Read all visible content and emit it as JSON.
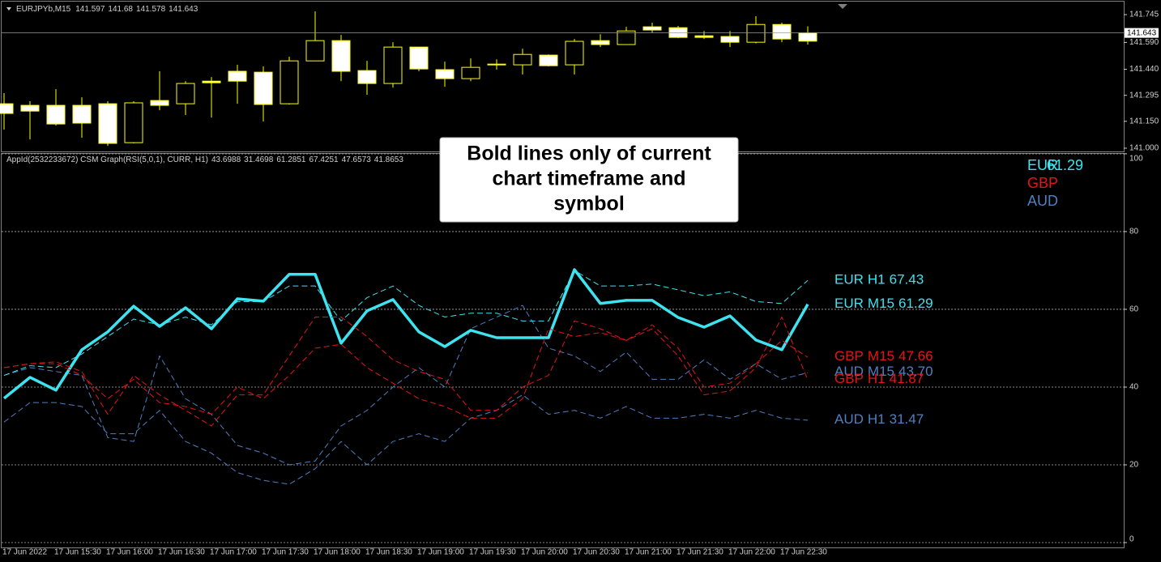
{
  "chart_data": [
    {
      "type": "candlestick",
      "title": "EURJPYb,M15",
      "open": [
        141.194,
        141.207,
        141.135,
        141.14,
        141.027,
        141.253,
        141.239,
        141.361,
        141.365,
        141.374,
        141.244,
        141.487,
        141.6,
        141.429,
        141.361,
        141.564,
        141.442,
        141.388,
        141.451,
        141.465,
        141.523,
        141.46,
        141.596,
        141.578,
        141.654,
        141.659,
        141.618,
        141.618,
        141.591,
        141.69,
        141.609,
        141.597
      ],
      "high": [
        141.307,
        141.262,
        141.329,
        141.284,
        141.262,
        141.262,
        141.429,
        141.374,
        141.397,
        141.465,
        141.456,
        141.51,
        141.763,
        141.632,
        141.487,
        141.591,
        141.564,
        141.483,
        141.501,
        141.496,
        141.555,
        141.523,
        141.609,
        141.636,
        141.677,
        141.7,
        141.682,
        141.654,
        141.654,
        141.736,
        141.7,
        141.68
      ],
      "low": [
        141.104,
        141.049,
        141.126,
        141.058,
        141.013,
        141.027,
        141.212,
        141.185,
        141.171,
        141.248,
        141.149,
        141.244,
        141.487,
        141.374,
        141.298,
        141.338,
        141.429,
        141.343,
        141.374,
        141.438,
        141.411,
        141.456,
        141.411,
        141.564,
        141.578,
        141.645,
        141.614,
        141.609,
        141.564,
        141.585,
        141.591,
        141.578
      ],
      "close": [
        141.248,
        141.239,
        141.239,
        141.239,
        141.248,
        141.031,
        141.266,
        141.248,
        141.374,
        141.429,
        141.424,
        141.248,
        141.487,
        141.6,
        141.433,
        141.361,
        141.564,
        141.438,
        141.388,
        141.469,
        141.465,
        141.519,
        141.465,
        141.6,
        141.578,
        141.677,
        141.672,
        141.627,
        141.623,
        141.591,
        141.69,
        141.643
      ],
      "up_color": "#ffffff",
      "down_color": "#000000",
      "outline_color": "#ffff00",
      "ylim": [
        140.982,
        141.813
      ],
      "yticks": [
        {
          "value": 141.0,
          "label": "141.000"
        },
        {
          "value": 141.15,
          "label": "141.150"
        },
        141.295,
        {
          "value": 141.44,
          "label": "141.440"
        },
        {
          "value": 141.59,
          "label": "141.590"
        },
        141.745
      ]
    },
    {
      "type": "line",
      "title": "AppId(2532233672) CSM Graph(RSI(5,0,1), CURR, H1)",
      "annotation": [
        "Bold lines only of current",
        "chart timeframe and",
        "symbol"
      ],
      "categories": [
        "17 Jun 2022",
        null,
        "17 Jun 15:30",
        null,
        "17 Jun 16:00",
        null,
        "17 Jun 16:30",
        null,
        "17 Jun 17:00",
        null,
        "17 Jun 17:30",
        null,
        "17 Jun 18:00",
        null,
        "17 Jun 18:30",
        null,
        "17 Jun 19:00",
        null,
        "17 Jun 19:30",
        null,
        "17 Jun 20:00",
        null,
        "17 Jun 20:30",
        null,
        "17 Jun 21:00",
        null,
        "17 Jun 21:30",
        null,
        "17 Jun 22:00",
        null,
        "17 Jun 22:30",
        null
      ],
      "currencies": [
        {
          "name": "EUR",
          "color": "#3ee3f0"
        },
        {
          "name": "GBP",
          "color": "#e81414"
        },
        {
          "name": "AUD",
          "color": "#4f7fc0"
        }
      ],
      "series": [
        {
          "currency": "AUD",
          "timeframe": "M15",
          "bold": false,
          "color": "#4f7fc0",
          "values": [
            43,
            45,
            44,
            43,
            27,
            26,
            48,
            37,
            33,
            25,
            23,
            20,
            21,
            30,
            34,
            40,
            45,
            40,
            55,
            58,
            61,
            50,
            48,
            44,
            49,
            42,
            42,
            47,
            42,
            46,
            42,
            43.6988
          ],
          "value_labels": [
            null,
            null,
            null,
            null,
            null,
            null,
            null,
            null,
            null,
            null,
            null,
            null,
            null,
            null,
            null,
            null,
            null,
            null,
            null,
            null,
            null,
            null,
            null,
            null,
            null,
            null,
            null,
            null,
            null,
            null,
            null,
            "43.70"
          ]
        },
        {
          "currency": "AUD",
          "timeframe": "H1",
          "bold": false,
          "color": "#4f7fc0",
          "values": [
            31,
            36,
            36,
            35,
            28,
            28,
            34,
            26,
            23,
            18,
            16,
            15,
            19,
            26,
            20,
            26,
            28,
            26,
            32,
            34,
            38,
            33,
            34,
            32,
            35,
            32,
            32,
            33,
            32,
            34,
            32,
            31.4698
          ],
          "value_labels": [
            null,
            null,
            null,
            null,
            null,
            null,
            null,
            null,
            null,
            null,
            null,
            null,
            null,
            null,
            null,
            null,
            null,
            null,
            null,
            null,
            null,
            null,
            null,
            null,
            null,
            null,
            null,
            null,
            null,
            null,
            null,
            "31.47"
          ]
        },
        {
          "currency": "EUR",
          "timeframe": "M15",
          "bold": true,
          "color": "#3ee3f0",
          "values": [
            37.1,
            42.5,
            39.2,
            49.6,
            54.2,
            60.8,
            55.6,
            60.4,
            55.0,
            62.7,
            62.1,
            69.0,
            69.0,
            51.3,
            59.6,
            62.5,
            54.2,
            50.4,
            54.6,
            52.7,
            52.7,
            52.7,
            70.2,
            61.5,
            62.3,
            62.3,
            57.9,
            55.4,
            58.3,
            52.1,
            49.6,
            61.2851
          ],
          "value_labels": [
            null,
            null,
            null,
            null,
            null,
            null,
            null,
            null,
            null,
            null,
            null,
            null,
            null,
            null,
            null,
            null,
            null,
            null,
            null,
            null,
            null,
            null,
            null,
            null,
            null,
            null,
            null,
            null,
            null,
            null,
            null,
            "61.29"
          ]
        },
        {
          "currency": "EUR",
          "timeframe": "H1",
          "bold": false,
          "color": "#3ee3f0",
          "values": [
            43,
            45.5,
            45,
            48.5,
            53,
            57.5,
            56,
            58,
            56,
            62,
            62,
            66,
            66,
            57,
            63,
            66,
            61,
            58,
            59,
            59,
            57,
            57,
            70,
            66,
            66,
            66.5,
            65,
            63.5,
            64.5,
            62,
            61.5,
            67.4251
          ],
          "value_labels": [
            null,
            null,
            null,
            null,
            null,
            null,
            null,
            null,
            null,
            null,
            null,
            null,
            null,
            null,
            null,
            null,
            null,
            null,
            null,
            null,
            null,
            null,
            null,
            null,
            null,
            null,
            null,
            null,
            null,
            null,
            null,
            "67.43"
          ]
        },
        {
          "currency": "GBP",
          "timeframe": "M15",
          "bold": false,
          "color": "#e81414",
          "values": [
            45,
            46,
            46,
            43,
            37,
            42,
            36,
            35,
            33,
            40,
            37,
            43,
            50,
            51,
            45,
            41,
            37,
            35,
            32,
            32,
            37,
            55,
            53,
            54,
            52,
            56,
            50,
            40,
            41,
            46,
            52,
            47.6573
          ],
          "value_labels": [
            null,
            null,
            null,
            null,
            null,
            null,
            null,
            null,
            null,
            null,
            null,
            null,
            null,
            null,
            null,
            null,
            null,
            null,
            null,
            null,
            null,
            null,
            null,
            null,
            null,
            null,
            null,
            null,
            null,
            null,
            null,
            "47.66"
          ]
        },
        {
          "currency": "GBP",
          "timeframe": "H1",
          "bold": false,
          "color": "#e81414",
          "values": [
            45,
            46,
            46.5,
            44,
            33,
            43,
            38,
            34,
            30,
            38,
            38,
            48,
            58,
            58,
            53,
            47,
            44,
            42,
            34,
            34,
            40,
            43,
            57,
            55,
            52,
            55,
            48,
            38,
            39,
            45,
            58,
            41.8653
          ],
          "value_labels": [
            null,
            null,
            null,
            null,
            null,
            null,
            null,
            null,
            null,
            null,
            null,
            null,
            null,
            null,
            null,
            null,
            null,
            null,
            null,
            null,
            null,
            null,
            null,
            null,
            null,
            null,
            null,
            null,
            null,
            null,
            null,
            "41.87"
          ]
        }
      ],
      "ylim": [
        -1.25,
        100.4
      ],
      "yticks": [
        0,
        20,
        40,
        60,
        80,
        100
      ],
      "grid": true
    }
  ]
}
